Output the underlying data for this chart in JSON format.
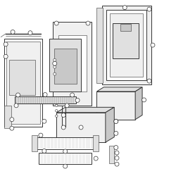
{
  "bg_color": "#ffffff",
  "line_color": "#333333",
  "fill_white": "#ffffff",
  "fill_light": "#f0f0f0",
  "fill_mid": "#e0e0e0",
  "fill_dark": "#c8c8c8",
  "lw_main": 0.7,
  "lw_thin": 0.4,
  "callout_r": 0.012,
  "callout_lw": 0.5
}
